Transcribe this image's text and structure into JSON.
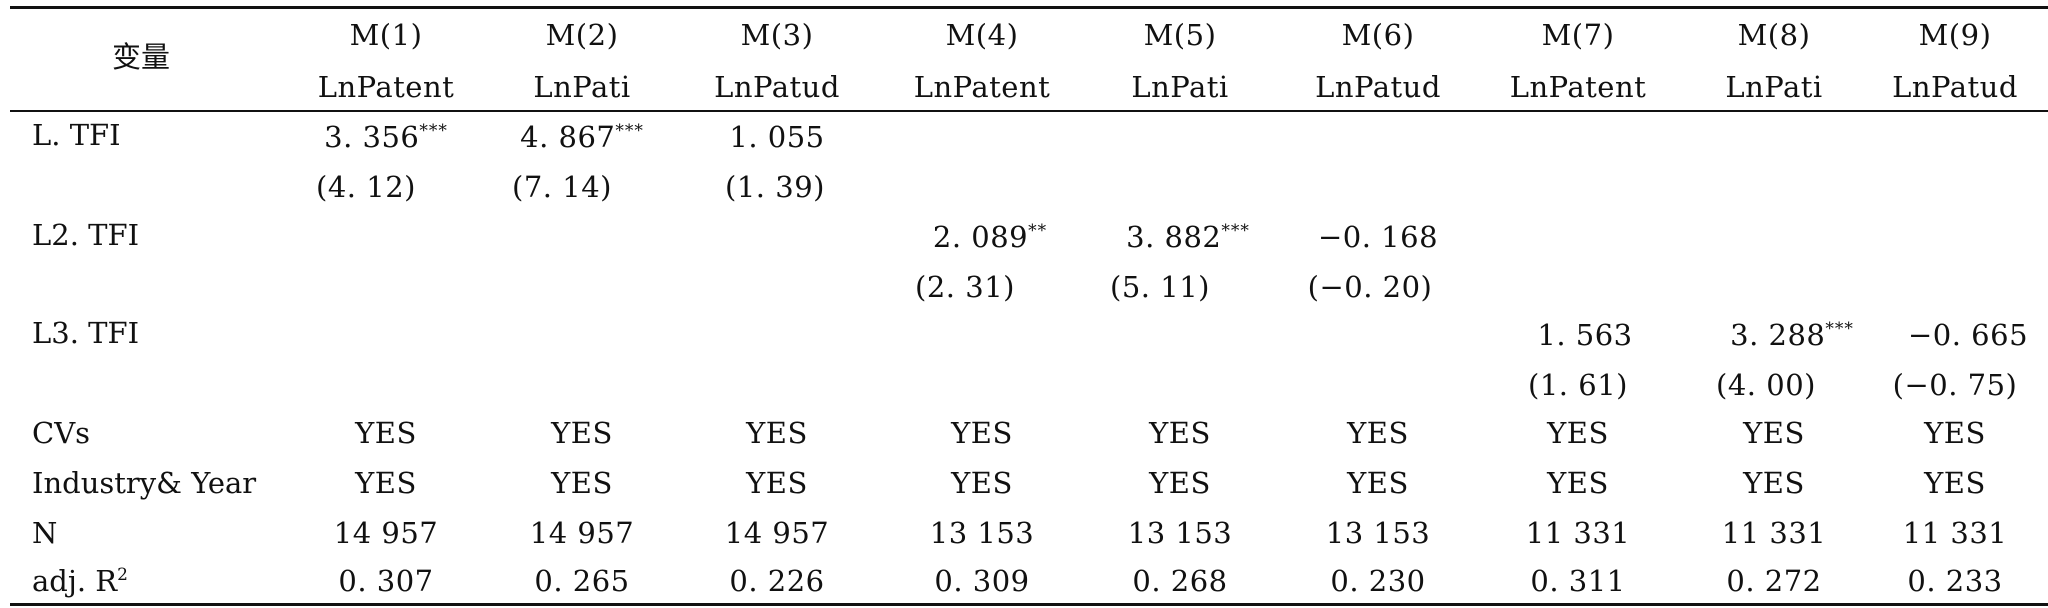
{
  "table": {
    "var_header": "变量",
    "columns": [
      {
        "model": "M(1)",
        "dep": "LnPatent"
      },
      {
        "model": "M(2)",
        "dep": "LnPati"
      },
      {
        "model": "M(3)",
        "dep": "LnPatud"
      },
      {
        "model": "M(4)",
        "dep": "LnPatent"
      },
      {
        "model": "M(5)",
        "dep": "LnPati"
      },
      {
        "model": "M(6)",
        "dep": "LnPatud"
      },
      {
        "model": "M(7)",
        "dep": "LnPatent"
      },
      {
        "model": "M(8)",
        "dep": "LnPati"
      },
      {
        "model": "M(9)",
        "dep": "LnPatud"
      }
    ],
    "rows": {
      "l1": {
        "label": "L. TFI",
        "coef": [
          {
            "v": "3. 356",
            "s": "***"
          },
          {
            "v": "4. 867",
            "s": "***"
          },
          {
            "v": "1. 055",
            "s": ""
          }
        ],
        "t": [
          "(4. 12)",
          "(7. 14)",
          "(1. 39)"
        ]
      },
      "l2": {
        "label": "L2. TFI",
        "coef": [
          {
            "v": "2. 089",
            "s": "**"
          },
          {
            "v": "3. 882",
            "s": "***"
          },
          {
            "v": "−0. 168",
            "s": ""
          }
        ],
        "t": [
          "(2. 31)",
          "(5. 11)",
          "(−0. 20)"
        ]
      },
      "l3": {
        "label": "L3. TFI",
        "coef": [
          {
            "v": "1. 563",
            "s": ""
          },
          {
            "v": "3. 288",
            "s": "***"
          },
          {
            "v": "−0. 665",
            "s": ""
          }
        ],
        "t": [
          "(1. 61)",
          "(4. 00)",
          "(−0. 75)"
        ]
      },
      "cvs": {
        "label": "CVs",
        "values": [
          "YES",
          "YES",
          "YES",
          "YES",
          "YES",
          "YES",
          "YES",
          "YES",
          "YES"
        ]
      },
      "fe": {
        "label": "Industry& Year",
        "values": [
          "YES",
          "YES",
          "YES",
          "YES",
          "YES",
          "YES",
          "YES",
          "YES",
          "YES"
        ]
      },
      "n": {
        "label": "N",
        "values": [
          "14 957",
          "14 957",
          "14 957",
          "13 153",
          "13 153",
          "13 153",
          "11 331",
          "11 331",
          "11 331"
        ]
      },
      "r2": {
        "label": "adj. R",
        "label_sup": "2",
        "values": [
          "0. 307",
          "0. 265",
          "0. 226",
          "0. 309",
          "0. 268",
          "0. 230",
          "0. 311",
          "0. 272",
          "0. 233"
        ]
      }
    }
  }
}
